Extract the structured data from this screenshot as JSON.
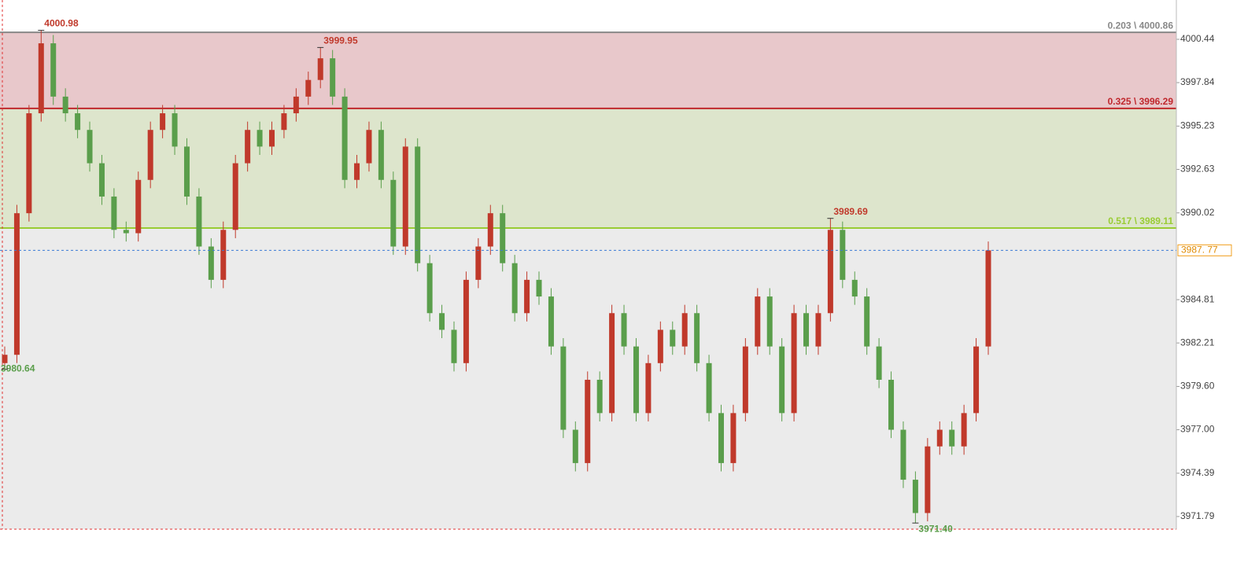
{
  "chart_data": {
    "type": "candlestick",
    "ylim": [
      3971.03,
      4002.8
    ],
    "yticks": [
      4000.44,
      3997.84,
      3995.23,
      3992.63,
      3990.02,
      3984.81,
      3982.21,
      {
        "value": 3979.6,
        "label": "3979.60"
      },
      {
        "value": 3977.0,
        "label": "3977.00"
      },
      3974.39,
      3971.79
    ],
    "up_color": "#c0392b",
    "down_color": "#5a9e4b",
    "open": [
      3981,
      3981.5,
      3990,
      3996,
      4000.2,
      3997,
      3996,
      3995,
      3993,
      3991,
      3989,
      3988.8,
      3992,
      3995,
      3996,
      3994,
      3991,
      3988,
      3986,
      3989,
      3993,
      3995,
      3994,
      3995,
      3996,
      3997,
      3998,
      3999.3,
      3997,
      3992,
      3993,
      3995,
      3992,
      3988,
      3994,
      3987,
      3984,
      3983,
      3981,
      3986,
      3988,
      3990,
      3987,
      3984,
      3986,
      3985,
      3982,
      3977,
      3975,
      3980,
      3978,
      3984,
      3982,
      3978,
      3981,
      3983,
      3982,
      3984,
      3981,
      3978,
      3975,
      3978,
      3982,
      3985,
      3982,
      3978,
      3984,
      3982,
      3984,
      3989,
      3986,
      3985,
      3982,
      3980,
      3977,
      3974,
      3972,
      3976,
      3977,
      3976,
      3978,
      3982
    ],
    "high": [
      3982,
      3990.5,
      3996.5,
      4000.98,
      4000.7,
      3997.5,
      3996.5,
      3995.5,
      3993.5,
      3991.5,
      3989.5,
      3992.5,
      3995.5,
      3996.5,
      3996.5,
      3994.5,
      3991.5,
      3988.5,
      3989.5,
      3993.5,
      3995.5,
      3995.5,
      3995.5,
      3996.5,
      3997.5,
      3998.5,
      3999.95,
      3999.8,
      3997.5,
      3993.5,
      3995.5,
      3995.5,
      3992.5,
      3994.5,
      3994.5,
      3987.5,
      3984.5,
      3983.5,
      3986.5,
      3988.5,
      3990.5,
      3990.5,
      3987.5,
      3986.5,
      3986.5,
      3985.5,
      3982.5,
      3977.5,
      3980.5,
      3980.5,
      3984.5,
      3984.5,
      3982.5,
      3981.5,
      3983.5,
      3983.5,
      3984.5,
      3984.5,
      3981.5,
      3978.5,
      3978.5,
      3982.5,
      3985.5,
      3985.5,
      3982.5,
      3984.5,
      3984.5,
      3984.5,
      3989.69,
      3989.5,
      3986.5,
      3985.5,
      3982.5,
      3980.5,
      3977.5,
      3974.5,
      3976.5,
      3977.5,
      3977.5,
      3978.5,
      3982.5,
      3988.3
    ],
    "low": [
      3980.64,
      3981,
      3989.5,
      3995.5,
      3996.5,
      3995.5,
      3994.5,
      3992.5,
      3990.5,
      3988.5,
      3988.3,
      3988.3,
      3991.5,
      3994.5,
      3993.5,
      3990.5,
      3987.5,
      3985.5,
      3985.5,
      3988.5,
      3992.5,
      3993.5,
      3993.5,
      3994.5,
      3995.5,
      3996.5,
      3997.5,
      3996.5,
      3991.5,
      3991.5,
      3992.5,
      3991.5,
      3987.5,
      3987.5,
      3986.5,
      3983.5,
      3982.5,
      3980.5,
      3980.5,
      3985.5,
      3987.5,
      3986.5,
      3983.5,
      3983.5,
      3984.5,
      3981.5,
      3976.5,
      3974.5,
      3974.5,
      3977.5,
      3977.5,
      3981.5,
      3977.5,
      3977.5,
      3980.5,
      3981.5,
      3981.5,
      3980.5,
      3977.5,
      3974.5,
      3974.5,
      3977.5,
      3981.5,
      3981.5,
      3977.5,
      3977.5,
      3981.5,
      3981.5,
      3983.5,
      3985.5,
      3984.5,
      3981.5,
      3979.5,
      3976.5,
      3973.5,
      3971.4,
      3971.5,
      3975.5,
      3975.5,
      3975.5,
      3977.5,
      3981.5
    ],
    "close": [
      3981.5,
      3990,
      3996,
      4000.2,
      3997,
      3996,
      3995,
      3993,
      3991,
      3989,
      3988.8,
      3992,
      3995,
      3996,
      3994,
      3991,
      3988,
      3986,
      3989,
      3993,
      3995,
      3994,
      3995,
      3996,
      3997,
      3998,
      3999.3,
      3997,
      3992,
      3993,
      3995,
      3992,
      3988,
      3994,
      3987,
      3984,
      3983,
      3981,
      3986,
      3988,
      3990,
      3987,
      3984,
      3986,
      3985,
      3982,
      3977,
      3975,
      3980,
      3978,
      3984,
      3982,
      3978,
      3981,
      3983,
      3982,
      3984,
      3981,
      3978,
      3975,
      3978,
      3982,
      3985,
      3982,
      3978,
      3984,
      3982,
      3984,
      3989,
      3986,
      3985,
      3982,
      3980,
      3977,
      3974,
      3972,
      3976,
      3977,
      3976,
      3978,
      3982,
      3987.77
    ],
    "levels": [
      {
        "label": "0.203 \\ 4000.86",
        "value": 4000.86,
        "color": "#888888",
        "zone": "#e8c8cb"
      },
      {
        "label": "0.325 \\ 3996.29",
        "value": 3996.29,
        "color": "#c0282d",
        "zone": "#dde5cc"
      },
      {
        "label": "0.517 \\ 3989.11",
        "value": 3989.11,
        "color": "#99cc33",
        "zone": "#ebebeb"
      }
    ],
    "current_price": {
      "value": 3987.77,
      "label": "3987. 77"
    },
    "annotations": [
      4000.98,
      3999.95,
      3989.69,
      {
        "value": 3971.4,
        "label": "3971.40"
      },
      3980.64
    ]
  }
}
